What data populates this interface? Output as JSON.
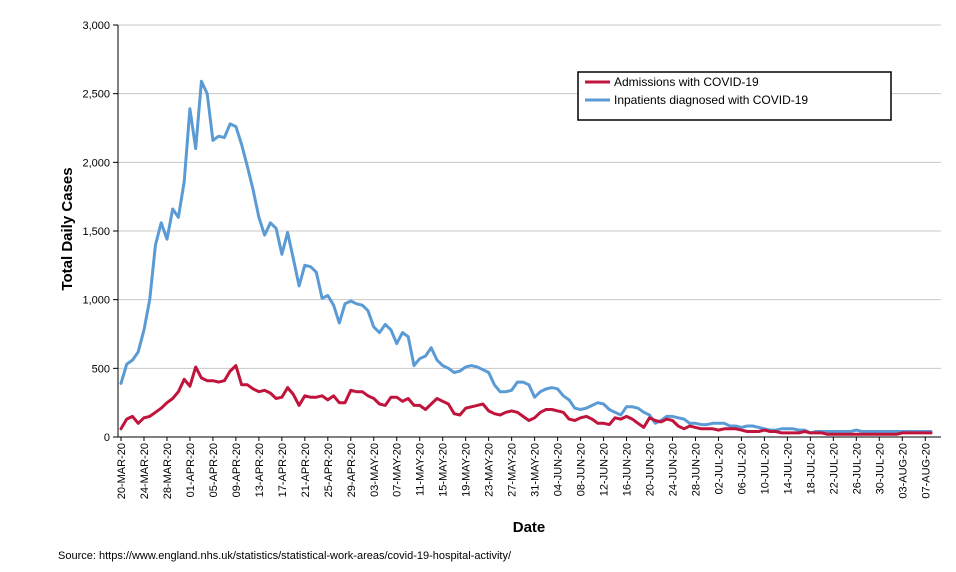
{
  "chart_data": {
    "type": "line",
    "xlabel": "Date",
    "ylabel": "Total Daily Cases",
    "ylim": [
      0,
      3000
    ],
    "y_ticks": [
      0,
      500,
      1000,
      1500,
      2000,
      2500,
      3000
    ],
    "y_tick_labels": [
      "0",
      "500",
      "1,000",
      "1,500",
      "2,000",
      "2,500",
      "3,000"
    ],
    "x_start": "20-MAR-20",
    "x_end": "08-AUG-20",
    "x_tick_labels": [
      "20-MAR-20",
      "24-MAR-20",
      "28-MAR-20",
      "01-APR-20",
      "05-APR-20",
      "09-APR-20",
      "13-APR-20",
      "17-APR-20",
      "21-APR-20",
      "25-APR-20",
      "29-APR-20",
      "03-MAY-20",
      "07-MAY-20",
      "11-MAY-20",
      "15-MAY-20",
      "19-MAY-20",
      "23-MAY-20",
      "27-MAY-20",
      "31-MAY-20",
      "04-JUN-20",
      "08-JUN-20",
      "12-JUN-20",
      "16-JUN-20",
      "20-JUN-20",
      "24-JUN-20",
      "28-JUN-20",
      "02-JUL-20",
      "06-JUL-20",
      "10-JUL-20",
      "14-JUL-20",
      "18-JUL-20",
      "22-JUL-20",
      "26-JUL-20",
      "30-JUL-20",
      "03-AUG-20",
      "07-AUG-20"
    ],
    "grid": true,
    "legend_position": "top-right",
    "series": [
      {
        "name": "Admissions with COVID-19",
        "color": "#c0143c",
        "values": [
          60,
          130,
          150,
          100,
          140,
          150,
          180,
          210,
          250,
          280,
          330,
          420,
          370,
          510,
          430,
          410,
          410,
          400,
          410,
          480,
          520,
          380,
          380,
          350,
          330,
          340,
          320,
          280,
          290,
          360,
          310,
          230,
          300,
          290,
          290,
          300,
          270,
          300,
          250,
          250,
          340,
          330,
          330,
          300,
          280,
          240,
          230,
          290,
          290,
          260,
          280,
          230,
          230,
          200,
          240,
          280,
          260,
          240,
          170,
          160,
          210,
          220,
          230,
          240,
          190,
          170,
          160,
          180,
          190,
          180,
          150,
          120,
          140,
          180,
          200,
          200,
          190,
          180,
          130,
          120,
          140,
          150,
          130,
          100,
          100,
          90,
          140,
          130,
          150,
          130,
          100,
          70,
          140,
          120,
          110,
          130,
          120,
          80,
          60,
          80,
          70,
          60,
          60,
          60,
          50,
          60,
          60,
          60,
          50,
          40,
          40,
          40,
          50,
          40,
          40,
          30,
          30,
          30,
          30,
          40,
          30,
          30,
          30,
          20,
          20,
          20,
          20,
          20,
          20,
          20,
          20,
          20,
          20,
          20,
          20,
          20,
          30,
          30,
          30,
          30,
          30,
          30
        ]
      },
      {
        "name": "Inpatients diagnosed with COVID-19",
        "color": "#5b9bd5",
        "values": [
          390,
          530,
          560,
          620,
          780,
          1000,
          1400,
          1560,
          1440,
          1660,
          1600,
          1860,
          2390,
          2100,
          2590,
          2500,
          2160,
          2190,
          2180,
          2280,
          2260,
          2130,
          1970,
          1800,
          1600,
          1470,
          1560,
          1520,
          1330,
          1490,
          1300,
          1100,
          1250,
          1240,
          1200,
          1010,
          1030,
          960,
          830,
          970,
          990,
          970,
          960,
          920,
          800,
          760,
          820,
          780,
          680,
          760,
          730,
          520,
          570,
          590,
          650,
          560,
          520,
          500,
          470,
          480,
          510,
          520,
          510,
          490,
          470,
          380,
          330,
          330,
          340,
          400,
          400,
          380,
          290,
          330,
          350,
          360,
          350,
          300,
          270,
          210,
          200,
          210,
          230,
          250,
          240,
          200,
          180,
          160,
          220,
          220,
          210,
          180,
          160,
          100,
          120,
          150,
          150,
          140,
          130,
          100,
          100,
          90,
          90,
          100,
          100,
          100,
          80,
          80,
          70,
          80,
          80,
          70,
          60,
          50,
          50,
          60,
          60,
          60,
          50,
          50,
          30,
          40,
          40,
          40,
          40,
          40,
          40,
          40,
          50,
          40,
          40,
          40,
          40,
          40,
          40,
          40,
          40,
          40,
          40,
          40,
          40,
          40
        ]
      }
    ]
  },
  "footer": {
    "source": "Source: https://www.england.nhs.uk/statistics/statistical-work-areas/covid-19-hospital-activity/"
  }
}
